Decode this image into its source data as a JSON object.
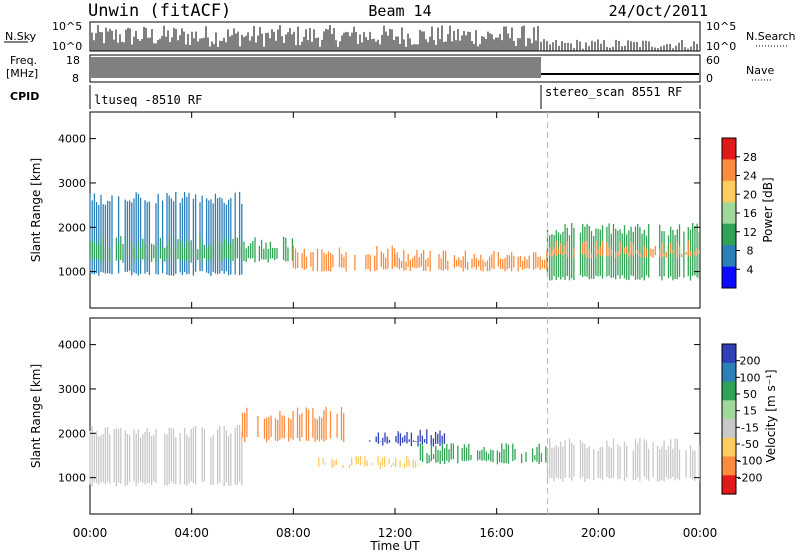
{
  "header": {
    "site": "Unwin (fitACF)",
    "beam": "Beam 14",
    "date": "24/Oct/2011"
  },
  "status_panels": {
    "nsky_label": "N.Sky",
    "nsky_ticks": [
      "10^5",
      "10^0"
    ],
    "nsearch_label": "N.Search",
    "nsearch_ticks": [
      "10^5",
      "10^0"
    ],
    "freq_label_1": "Freq.",
    "freq_label_2": "[MHz]",
    "freq_ticks": [
      "18",
      "8"
    ],
    "nave_label": "Nave",
    "nave_ticks": [
      "60",
      "0"
    ],
    "cpid_label": "CPID",
    "cpid_segments": [
      {
        "label": "ltuseq -8510 RF",
        "start_hour": 0
      },
      {
        "label": "stereo_scan 8551 RF",
        "start_hour": 18
      }
    ]
  },
  "chart_data": [
    {
      "type": "heatmap",
      "title": "",
      "xlabel": "",
      "ylabel": "Slant Range [km]",
      "x_range_hours": [
        0,
        24
      ],
      "ylim": [
        180,
        4600
      ],
      "y_ticks": [
        1000,
        2000,
        3000,
        4000
      ],
      "colorbar": {
        "label": "Power [dB]",
        "ticks": [
          "28",
          "24",
          "20",
          "16",
          "12",
          "8",
          "4"
        ],
        "colors": [
          "#e31a1c",
          "#fd8d3c",
          "#fecc5c",
          "#a1d99b",
          "#31a354",
          "#2c7fb8",
          "#0a0aff"
        ]
      },
      "bands": [
        {
          "start": 0,
          "end": 6,
          "low": 900,
          "high": 2800,
          "color": "#2c7fb8"
        },
        {
          "start": 0,
          "end": 8,
          "low": 1200,
          "high": 1800,
          "color": "#31a354"
        },
        {
          "start": 8,
          "end": 12,
          "low": 1000,
          "high": 1600,
          "color": "#fd8d3c"
        },
        {
          "start": 12,
          "end": 18,
          "low": 1000,
          "high": 1500,
          "color": "#fd8d3c"
        },
        {
          "start": 18,
          "end": 24,
          "low": 800,
          "high": 2100,
          "color": "#31a354"
        },
        {
          "start": 18,
          "end": 24,
          "low": 1300,
          "high": 1700,
          "color": "#fd8d3c"
        }
      ]
    },
    {
      "type": "heatmap",
      "title": "",
      "xlabel": "Time UT",
      "ylabel": "Slant Range [km]",
      "x_range_hours": [
        0,
        24
      ],
      "x_ticks": [
        "00:00",
        "04:00",
        "08:00",
        "12:00",
        "16:00",
        "20:00",
        "00:00"
      ],
      "ylim": [
        180,
        4600
      ],
      "y_ticks": [
        1000,
        2000,
        3000,
        4000
      ],
      "colorbar": {
        "label": "Velocity [m s⁻¹]",
        "ticks": [
          "200",
          "100",
          "50",
          "15",
          "-15",
          "-50",
          "-100",
          "-200"
        ],
        "colors": [
          "#2f3fb6",
          "#2c7fb8",
          "#31a354",
          "#a1d99b",
          "#c8c8c8",
          "#fecc5c",
          "#fd8d3c",
          "#e31a1c"
        ]
      },
      "bands": [
        {
          "start": 0,
          "end": 6,
          "low": 800,
          "high": 2200,
          "color": "#c8c8c8"
        },
        {
          "start": 6,
          "end": 10,
          "low": 1800,
          "high": 2600,
          "color": "#fd8d3c"
        },
        {
          "start": 9,
          "end": 13,
          "low": 1200,
          "high": 1500,
          "color": "#fecc5c"
        },
        {
          "start": 11,
          "end": 14,
          "low": 1700,
          "high": 2100,
          "color": "#2f3fb6"
        },
        {
          "start": 13,
          "end": 18,
          "low": 1300,
          "high": 1800,
          "color": "#31a354"
        },
        {
          "start": 18,
          "end": 24,
          "low": 900,
          "high": 1900,
          "color": "#c8c8c8"
        }
      ]
    }
  ]
}
